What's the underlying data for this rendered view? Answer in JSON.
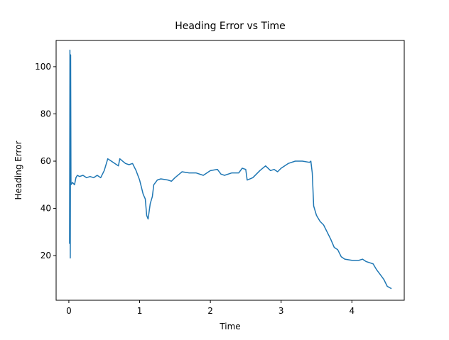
{
  "chart_data": {
    "type": "line",
    "title": "Heading Error vs Time",
    "x_label": "Time",
    "y_label": "Heading Error",
    "x": [
      0.01,
      0.015,
      0.02,
      0.025,
      0.03,
      0.05,
      0.08,
      0.1,
      0.12,
      0.15,
      0.2,
      0.25,
      0.3,
      0.35,
      0.4,
      0.45,
      0.5,
      0.55,
      0.6,
      0.65,
      0.7,
      0.72,
      0.8,
      0.85,
      0.9,
      0.95,
      1.0,
      1.05,
      1.08,
      1.1,
      1.12,
      1.15,
      1.18,
      1.2,
      1.25,
      1.3,
      1.4,
      1.45,
      1.5,
      1.6,
      1.7,
      1.8,
      1.9,
      2.0,
      2.1,
      2.15,
      2.2,
      2.3,
      2.4,
      2.45,
      2.5,
      2.52,
      2.6,
      2.7,
      2.78,
      2.85,
      2.9,
      2.95,
      3.0,
      3.1,
      3.2,
      3.3,
      3.4,
      3.42,
      3.44,
      3.46,
      3.5,
      3.55,
      3.6,
      3.65,
      3.7,
      3.75,
      3.8,
      3.85,
      3.9,
      4.0,
      4.1,
      4.15,
      4.2,
      4.25,
      4.3,
      4.35,
      4.4,
      4.45,
      4.5,
      4.56
    ],
    "series": [
      {
        "name": "Heading Error",
        "color": "#1f77b4",
        "values": [
          25,
          107,
          19,
          105,
          50,
          51,
          50,
          53,
          54,
          53.5,
          54,
          53,
          53.5,
          53,
          54,
          53,
          56,
          61,
          60,
          59,
          58,
          61,
          59,
          58.5,
          59,
          56,
          52,
          46,
          44,
          37,
          35.5,
          42,
          45,
          50,
          52,
          52.5,
          52,
          51.5,
          53,
          55.5,
          55,
          55,
          54,
          56,
          56.5,
          54.5,
          54,
          55,
          55,
          57,
          56.5,
          52,
          53,
          56,
          58,
          56,
          56.5,
          55.5,
          57,
          59,
          60,
          60,
          59.5,
          60,
          55,
          41,
          37,
          34.5,
          33,
          30,
          27,
          23.5,
          22.5,
          19.5,
          18.5,
          18,
          18,
          18.5,
          17.5,
          17,
          16.5,
          14,
          12,
          10,
          7,
          6
        ]
      }
    ],
    "xlim": [
      -0.18,
      4.74
    ],
    "ylim": [
      1.1,
      111.1
    ],
    "xticks": [
      0,
      1,
      2,
      3,
      4
    ],
    "yticks": [
      20,
      40,
      60,
      80,
      100
    ],
    "grid": false
  }
}
